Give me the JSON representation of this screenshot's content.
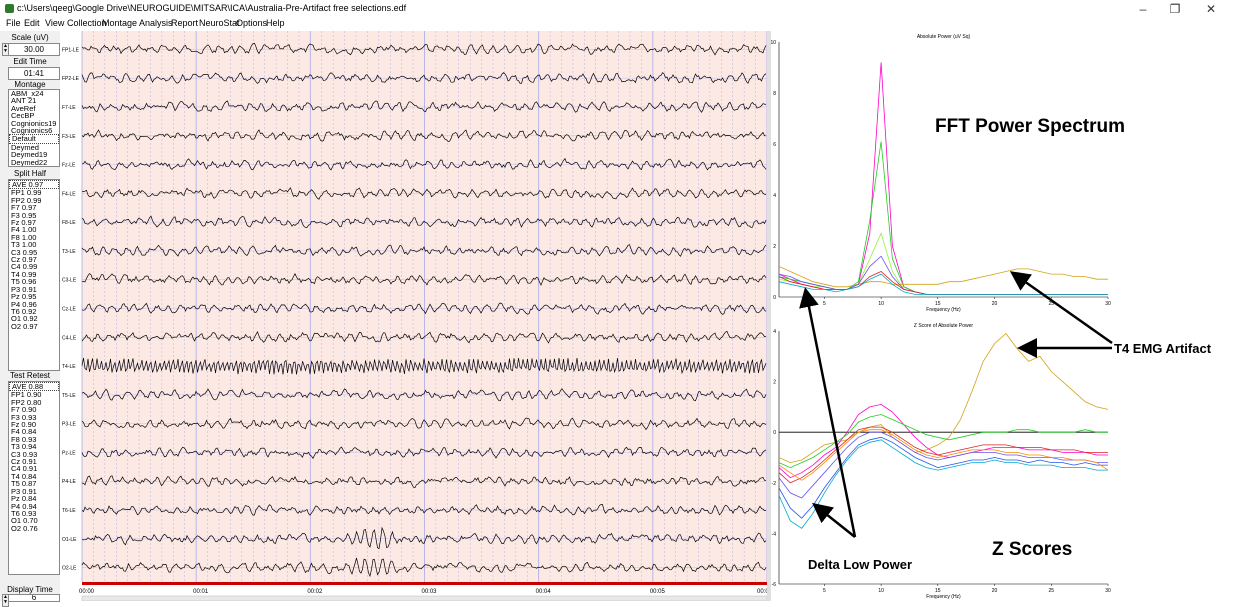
{
  "window": {
    "title": "c:\\Users\\qeeg\\Google Drive\\NEUROGUIDE\\MITSAR\\ICA\\Australia-Pre-Artifact free selections.edf",
    "minimize": "–",
    "maximize": "❐",
    "close": "✕"
  },
  "menu": [
    "File",
    "Edit",
    "View",
    "Collection",
    "Montage",
    "Analysis",
    "Report",
    "NeuroStat",
    "Options",
    "Help"
  ],
  "left_panel": {
    "scale_label": "Scale (uV)",
    "scale_value": "30.00",
    "edit_time_label": "Edit Time",
    "edit_time_value": "01:41",
    "montage_label": "Montage",
    "montage_items": [
      "ABM_x24",
      "ANT 21",
      "AveRef",
      "CecBP",
      "Cognionics19",
      "Cognionics6",
      "Default",
      "Deymed",
      "Deymed19",
      "Deymed22"
    ],
    "montage_selected": "Default",
    "split_half_label": "Split Half",
    "split_half_items": [
      "AVE 0.97",
      "FP1 0.99",
      "FP2 0.99",
      "F7 0.97",
      "F3 0.95",
      "Fz 0.97",
      "F4 1.00",
      "F8 1.00",
      "T3 1.00",
      "C3 0.95",
      "Cz 0.97",
      "C4 0.99",
      "T4 0.99",
      "T5 0.96",
      "P3 0.91",
      "Pz 0.95",
      "P4 0.96",
      "T6 0.92",
      "O1 0.92",
      "O2 0.97"
    ],
    "test_retest_label": "Test Retest",
    "test_retest_items": [
      "AVE 0.88",
      "FP1 0.90",
      "FP2 0.80",
      "F7 0.90",
      "F3 0.93",
      "Fz 0.90",
      "F4 0.84",
      "F8 0.93",
      "T3 0.94",
      "C3 0.93",
      "Cz 0.91",
      "C4 0.91",
      "T4 0.84",
      "T5 0.87",
      "P3 0.91",
      "Pz 0.84",
      "P4 0.94",
      "T6 0.93",
      "O1 0.70",
      "O2 0.76"
    ],
    "display_time_label": "Display Time",
    "display_time_value": "6"
  },
  "eeg": {
    "channels": [
      "FP1-LE",
      "FP2-LE",
      "F7-LE",
      "F3-LE",
      "Fz-LE",
      "F4-LE",
      "F8-LE",
      "T3-LE",
      "C3-LE",
      "Cz-LE",
      "C4-LE",
      "T4-LE",
      "T5-LE",
      "P3-LE",
      "Pz-LE",
      "P4-LE",
      "T6-LE",
      "O1-LE",
      "O2-LE"
    ],
    "time_labels": [
      "00:00",
      "00:01",
      "00:02",
      "00:03",
      "00:04",
      "00:05",
      "00:0"
    ],
    "background_color": "#fde9e4",
    "grid_color": "#9da3ec",
    "timeline_color": "#cc0000"
  },
  "fft_chart": {
    "title": "Absolute Power (uV Sq)",
    "xlabel": "Frequency (Hz)",
    "y_ticks": [
      "10",
      "8",
      "6",
      "4",
      "2",
      "0"
    ],
    "x_ticks": [
      "5",
      "10",
      "15",
      "20",
      "25",
      "30"
    ]
  },
  "z_chart": {
    "title": "Z Score of Absolute Power",
    "xlabel": "Frequency (Hz)",
    "y_ticks": [
      "4",
      "2",
      "0",
      "-2",
      "-4",
      "-6"
    ],
    "x_ticks": [
      "5",
      "10",
      "15",
      "20",
      "25",
      "30"
    ]
  },
  "chart_data": [
    {
      "type": "line",
      "title": "Absolute Power (uV Sq)",
      "xlabel": "Frequency (Hz)",
      "ylabel": "",
      "xlim": [
        1,
        30
      ],
      "ylim": [
        0,
        10
      ],
      "x": [
        1,
        2,
        3,
        4,
        5,
        6,
        7,
        8,
        9,
        10,
        11,
        12,
        13,
        14,
        15,
        16,
        17,
        18,
        19,
        20,
        21,
        22,
        23,
        24,
        25,
        26,
        27,
        28,
        29,
        30
      ],
      "series": [
        {
          "color": "#ff00cc",
          "values": [
            0.9,
            0.7,
            0.5,
            0.4,
            0.3,
            0.3,
            0.3,
            0.5,
            2.5,
            9.2,
            2.0,
            0.4,
            0.2,
            0.1,
            0.1,
            0.1,
            0.1,
            0.1,
            0.1,
            0.1,
            0.1,
            0.1,
            0.1,
            0.1,
            0.1,
            0.1,
            0.1,
            0.1,
            0.1,
            0.1
          ]
        },
        {
          "color": "#22cc22",
          "values": [
            0.8,
            0.7,
            0.6,
            0.5,
            0.4,
            0.3,
            0.3,
            0.6,
            3.0,
            6.1,
            1.5,
            0.4,
            0.2,
            0.1,
            0.1,
            0.1,
            0.1,
            0.1,
            0.1,
            0.1,
            0.1,
            0.1,
            0.1,
            0.1,
            0.1,
            0.1,
            0.1,
            0.1,
            0.1,
            0.1
          ]
        },
        {
          "color": "#99ee44",
          "values": [
            0.7,
            0.6,
            0.5,
            0.4,
            0.4,
            0.3,
            0.3,
            0.5,
            1.5,
            2.5,
            1.0,
            0.3,
            0.2,
            0.1,
            0.1,
            0.1,
            0.1,
            0.1,
            0.1,
            0.1,
            0.1,
            0.1,
            0.1,
            0.1,
            0.1,
            0.1,
            0.1,
            0.1,
            0.1,
            0.1
          ]
        },
        {
          "color": "#d4a017",
          "values": [
            1.2,
            1.0,
            0.8,
            0.6,
            0.5,
            0.4,
            0.4,
            0.5,
            0.6,
            0.6,
            0.5,
            0.5,
            0.5,
            0.5,
            0.5,
            0.6,
            0.6,
            0.7,
            0.8,
            0.9,
            1.0,
            1.1,
            1.1,
            1.0,
            0.9,
            0.9,
            0.8,
            0.8,
            0.7,
            0.7
          ]
        },
        {
          "color": "#6655ee",
          "values": [
            0.9,
            0.8,
            0.6,
            0.5,
            0.4,
            0.3,
            0.3,
            0.5,
            1.2,
            1.6,
            0.8,
            0.3,
            0.2,
            0.1,
            0.1,
            0.1,
            0.1,
            0.1,
            0.1,
            0.1,
            0.1,
            0.1,
            0.1,
            0.1,
            0.1,
            0.1,
            0.1,
            0.1,
            0.1,
            0.1
          ]
        },
        {
          "color": "#dd2222",
          "values": [
            0.8,
            0.6,
            0.5,
            0.4,
            0.3,
            0.3,
            0.3,
            0.4,
            0.8,
            1.0,
            0.6,
            0.3,
            0.2,
            0.1,
            0.1,
            0.1,
            0.1,
            0.1,
            0.1,
            0.1,
            0.1,
            0.1,
            0.1,
            0.1,
            0.1,
            0.1,
            0.1,
            0.1,
            0.1,
            0.1
          ]
        },
        {
          "color": "#00aacc",
          "values": [
            0.6,
            0.5,
            0.4,
            0.3,
            0.3,
            0.2,
            0.3,
            0.4,
            0.7,
            0.9,
            0.5,
            0.2,
            0.1,
            0.1,
            0.1,
            0.1,
            0.1,
            0.1,
            0.1,
            0.1,
            0.1,
            0.1,
            0.1,
            0.1,
            0.1,
            0.1,
            0.1,
            0.1,
            0.1,
            0.1
          ]
        }
      ]
    },
    {
      "type": "line",
      "title": "Z Score of Absolute Power",
      "xlabel": "Frequency (Hz)",
      "ylabel": "",
      "xlim": [
        1,
        30
      ],
      "ylim": [
        -6,
        4
      ],
      "x": [
        1,
        2,
        3,
        4,
        5,
        6,
        7,
        8,
        9,
        10,
        11,
        12,
        13,
        14,
        15,
        16,
        17,
        18,
        19,
        20,
        21,
        22,
        23,
        24,
        25,
        26,
        27,
        28,
        29,
        30
      ],
      "series": [
        {
          "color": "#d4a017",
          "values": [
            -1.0,
            -1.2,
            -1.1,
            -0.8,
            -0.5,
            -0.4,
            -0.3,
            0.0,
            0.2,
            0.3,
            -0.2,
            -0.5,
            -0.8,
            -0.7,
            -0.5,
            -0.2,
            0.5,
            1.6,
            2.8,
            3.5,
            3.9,
            3.3,
            2.8,
            3.0,
            2.4,
            2.0,
            1.6,
            1.2,
            1.0,
            0.9
          ]
        },
        {
          "color": "#ff00cc",
          "values": [
            -1.4,
            -1.8,
            -1.6,
            -1.3,
            -0.9,
            -0.6,
            0.0,
            0.7,
            1.0,
            1.1,
            0.8,
            0.3,
            -0.2,
            -0.6,
            -0.9,
            -1.0,
            -0.9,
            -0.8,
            -0.7,
            -0.6,
            -0.6,
            -0.6,
            -0.7,
            -0.7,
            -0.7,
            -0.8,
            -0.8,
            -0.8,
            -0.9,
            -0.9
          ]
        },
        {
          "color": "#22cc22",
          "values": [
            -1.2,
            -1.4,
            -1.2,
            -1.0,
            -0.7,
            -0.4,
            -0.1,
            0.4,
            0.6,
            0.7,
            0.5,
            0.3,
            0.1,
            -0.1,
            -0.2,
            -0.3,
            -0.2,
            -0.1,
            0.0,
            0.0,
            0.0,
            0.1,
            0.1,
            0.0,
            0.0,
            0.0,
            0.0,
            0.1,
            0.0,
            0.0
          ]
        },
        {
          "color": "#2255ee",
          "values": [
            -2.2,
            -3.0,
            -3.4,
            -2.9,
            -2.2,
            -1.6,
            -1.0,
            -0.5,
            -0.3,
            -0.2,
            -0.4,
            -0.7,
            -1.0,
            -1.2,
            -1.4,
            -1.3,
            -1.2,
            -1.1,
            -1.1,
            -1.0,
            -1.1,
            -1.1,
            -1.2,
            -1.1,
            -1.2,
            -1.2,
            -1.3,
            -1.2,
            -1.3,
            -1.3
          ]
        },
        {
          "color": "#00aacc",
          "values": [
            -2.5,
            -3.5,
            -3.8,
            -3.2,
            -2.4,
            -1.7,
            -1.1,
            -0.6,
            -0.4,
            -0.3,
            -0.6,
            -0.9,
            -1.2,
            -1.4,
            -1.5,
            -1.4,
            -1.3,
            -1.2,
            -1.2,
            -1.1,
            -1.2,
            -1.2,
            -1.3,
            -1.3,
            -1.3,
            -1.4,
            -1.4,
            -1.4,
            -1.5,
            -1.5
          ]
        },
        {
          "color": "#dd2222",
          "values": [
            -1.6,
            -2.0,
            -1.8,
            -1.5,
            -1.1,
            -0.7,
            -0.3,
            0.1,
            0.2,
            0.2,
            0.0,
            -0.3,
            -0.6,
            -0.8,
            -0.9,
            -0.8,
            -0.7,
            -0.6,
            -0.5,
            -0.5,
            -0.5,
            -0.6,
            -0.6,
            -0.6,
            -0.7,
            -0.7,
            -0.7,
            -0.8,
            -0.8,
            -0.8
          ]
        },
        {
          "color": "#6655ee",
          "values": [
            -1.8,
            -2.4,
            -2.6,
            -2.1,
            -1.6,
            -1.1,
            -0.6,
            -0.2,
            0.0,
            0.0,
            -0.2,
            -0.5,
            -0.8,
            -1.0,
            -1.1,
            -1.0,
            -0.9,
            -0.8,
            -0.8,
            -0.8,
            -0.9,
            -0.9,
            -1.0,
            -1.0,
            -1.0,
            -1.1,
            -1.1,
            -1.1,
            -1.2,
            -1.2
          ]
        },
        {
          "color": "#ff8800",
          "values": [
            -1.3,
            -1.6,
            -1.9,
            -1.6,
            -1.2,
            -0.8,
            -0.4,
            0.0,
            0.1,
            0.1,
            -0.1,
            -0.4,
            -0.7,
            -0.9,
            -1.0,
            -0.9,
            -0.8,
            -0.7,
            -0.7,
            -0.7,
            -0.8,
            -0.8,
            -0.9,
            -0.9,
            -1.0,
            -1.0,
            -1.1,
            -1.1,
            -1.2,
            -1.5
          ]
        }
      ]
    }
  ],
  "annotations": {
    "fft_power_spectrum": "FFT Power Spectrum",
    "t4_emg_artifact": "T4 EMG Artifact",
    "delta_low_power": "Delta Low Power",
    "z_scores": "Z Scores"
  }
}
